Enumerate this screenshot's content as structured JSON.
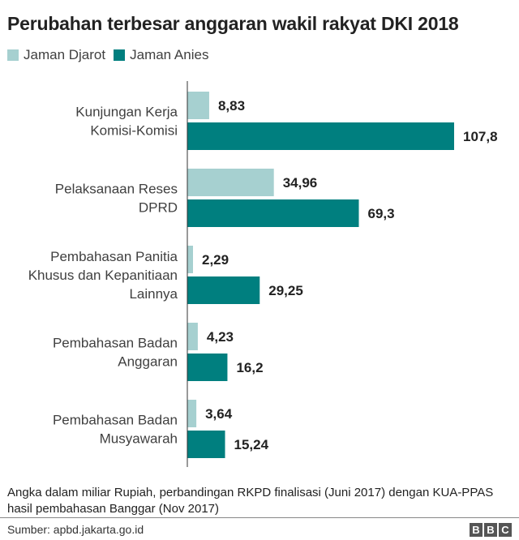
{
  "chart_data": {
    "type": "bar",
    "orientation": "horizontal",
    "title": "Perubahan terbesar anggaran wakil rakyat DKI 2018",
    "categories": [
      [
        "Kunjungan Kerja",
        "Komisi-Komisi"
      ],
      [
        "Pelaksanaan Reses",
        "DPRD"
      ],
      [
        "Pembahasan Panitia",
        "Khusus dan Kepanitiaan",
        "Lainnya"
      ],
      [
        "Pembahasan Badan",
        "Anggaran"
      ],
      [
        "Pembahasan Badan",
        "Musyawarah"
      ]
    ],
    "series": [
      {
        "name": "Jaman Djarot",
        "color": "#a6d0d0",
        "values": [
          8.83,
          34.96,
          2.29,
          4.23,
          3.64
        ],
        "labels": [
          "8,83",
          "34,96",
          "2,29",
          "4,23",
          "3,64"
        ]
      },
      {
        "name": "Jaman Anies",
        "color": "#007f7f",
        "values": [
          107.8,
          69.3,
          29.25,
          16.2,
          15.24
        ],
        "labels": [
          "107,8",
          "69,3",
          "29,25",
          "16,2",
          "15,24"
        ]
      }
    ],
    "xlim": [
      0,
      107.8
    ],
    "grid": false,
    "legend_position": "top-left"
  },
  "note": "Angka dalam miliar Rupiah, perbandingan RKPD finalisasi (Juni 2017) dengan KUA-PPAS hasil pembahasan Banggar (Nov 2017)",
  "source": "Sumber: apbd.jakarta.go.id",
  "logo": [
    "B",
    "B",
    "C"
  ]
}
